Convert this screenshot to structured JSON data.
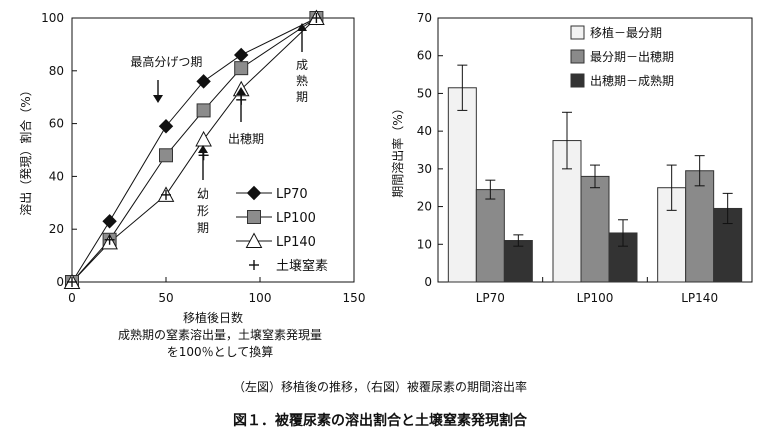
{
  "chart_data": [
    {
      "type": "line",
      "xlabel": "移植後日数",
      "ylabel": "溶出（発現）割合（%）",
      "xlim": [
        0,
        150
      ],
      "ylim": [
        0,
        100
      ],
      "xticks": [
        0,
        50,
        100,
        150
      ],
      "yticks": [
        0,
        20,
        40,
        60,
        80,
        100
      ],
      "series": [
        {
          "name": "LP70",
          "marker": "diamond",
          "x": [
            0,
            20,
            50,
            70,
            90,
            130
          ],
          "y": [
            0,
            23,
            59,
            76,
            86,
            100
          ]
        },
        {
          "name": "LP100",
          "marker": "square",
          "x": [
            0,
            20,
            50,
            70,
            90,
            130
          ],
          "y": [
            0,
            16,
            48,
            65,
            81,
            100
          ]
        },
        {
          "name": "LP140",
          "marker": "triangle",
          "x": [
            0,
            20,
            50,
            70,
            90,
            130
          ],
          "y": [
            0,
            15,
            33,
            54,
            73,
            100
          ]
        },
        {
          "name": "土壌窒素",
          "marker": "plus",
          "x": [
            0,
            20,
            50,
            70,
            90,
            130
          ],
          "y": [
            0,
            16,
            33,
            48,
            69,
            100
          ]
        }
      ],
      "annotations": [
        {
          "text": "最高分げつ期",
          "x": 47,
          "y": 68
        },
        {
          "text": "幼形期",
          "x": 70,
          "y": 36
        },
        {
          "text": "出穂期",
          "x": 90,
          "y": 58
        },
        {
          "text": "成熟期",
          "x": 125,
          "y": 80
        }
      ]
    },
    {
      "type": "bar",
      "ylabel": "期間溶出率（%）",
      "ylim": [
        0,
        70
      ],
      "yticks": [
        0,
        10,
        20,
        30,
        40,
        50,
        60,
        70
      ],
      "categories": [
        "LP70",
        "LP100",
        "LP140"
      ],
      "series": [
        {
          "name": "移植－最分期",
          "color": "#f2f2f2",
          "values": [
            51.5,
            37.5,
            25
          ],
          "errors": [
            6,
            7.5,
            6
          ]
        },
        {
          "name": "最分期－出穂期",
          "color": "#8a8a8a",
          "values": [
            24.5,
            28,
            29.5
          ],
          "errors": [
            2.5,
            3,
            4
          ]
        },
        {
          "name": "出穂期－成熟期",
          "color": "#333333",
          "values": [
            11,
            13,
            19.5
          ],
          "errors": [
            1.5,
            3.5,
            4
          ]
        }
      ]
    }
  ],
  "notes": {
    "line1": "成熟期の窒素溶出量，土壌窒素発現量",
    "line2": "を100％として換算"
  },
  "captions": {
    "sub": "（左図）移植後の推移，（右図）被覆尿素の期間溶出率",
    "main": "図１．被覆尿素の溶出割合と土壌窒素発現割合"
  }
}
